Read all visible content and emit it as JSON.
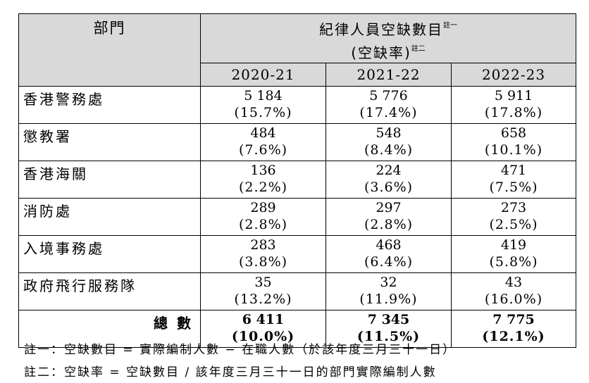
{
  "header": {
    "dept": "部門",
    "title": "紀律人員空缺數目",
    "title_note": "註一",
    "subtitle": "(空缺率)",
    "subtitle_note": "註二",
    "years": [
      "2020-21",
      "2021-22",
      "2022-23"
    ]
  },
  "rows": [
    {
      "name": "香港警務處",
      "v": [
        "5 184",
        "5 776",
        "5 911"
      ],
      "p": [
        "(15.7%)",
        "(17.4%)",
        "(17.8%)"
      ]
    },
    {
      "name": "懲教署",
      "v": [
        "484",
        "548",
        "658"
      ],
      "p": [
        "(7.6%)",
        "(8.4%)",
        "(10.1%)"
      ]
    },
    {
      "name": "香港海關",
      "v": [
        "136",
        "224",
        "471"
      ],
      "p": [
        "(2.2%)",
        "(3.6%)",
        "(7.5%)"
      ]
    },
    {
      "name": "消防處",
      "v": [
        "289",
        "297",
        "273"
      ],
      "p": [
        "(2.8%)",
        "(2.8%)",
        "(2.5%)"
      ]
    },
    {
      "name": "入境事務處",
      "v": [
        "283",
        "468",
        "419"
      ],
      "p": [
        "(3.8%)",
        "(6.4%)",
        "(5.8%)"
      ]
    },
    {
      "name": "政府飛行服務隊",
      "v": [
        "35",
        "32",
        "43"
      ],
      "p": [
        "(13.2%)",
        "(11.9%)",
        "(16.0%)"
      ]
    }
  ],
  "total": {
    "name": "總 數",
    "v": [
      "6 411",
      "7 345",
      "7 775"
    ],
    "p": [
      "(10.0%)",
      "(11.5%)",
      "(12.1%)"
    ]
  },
  "notes": [
    "註一：空缺數目 = 實際編制人數 − 在職人數（於該年度三月三十一日）",
    "註二：空缺率 = 空缺數目 / 該年度三月三十一日的部門實際編制人數"
  ]
}
